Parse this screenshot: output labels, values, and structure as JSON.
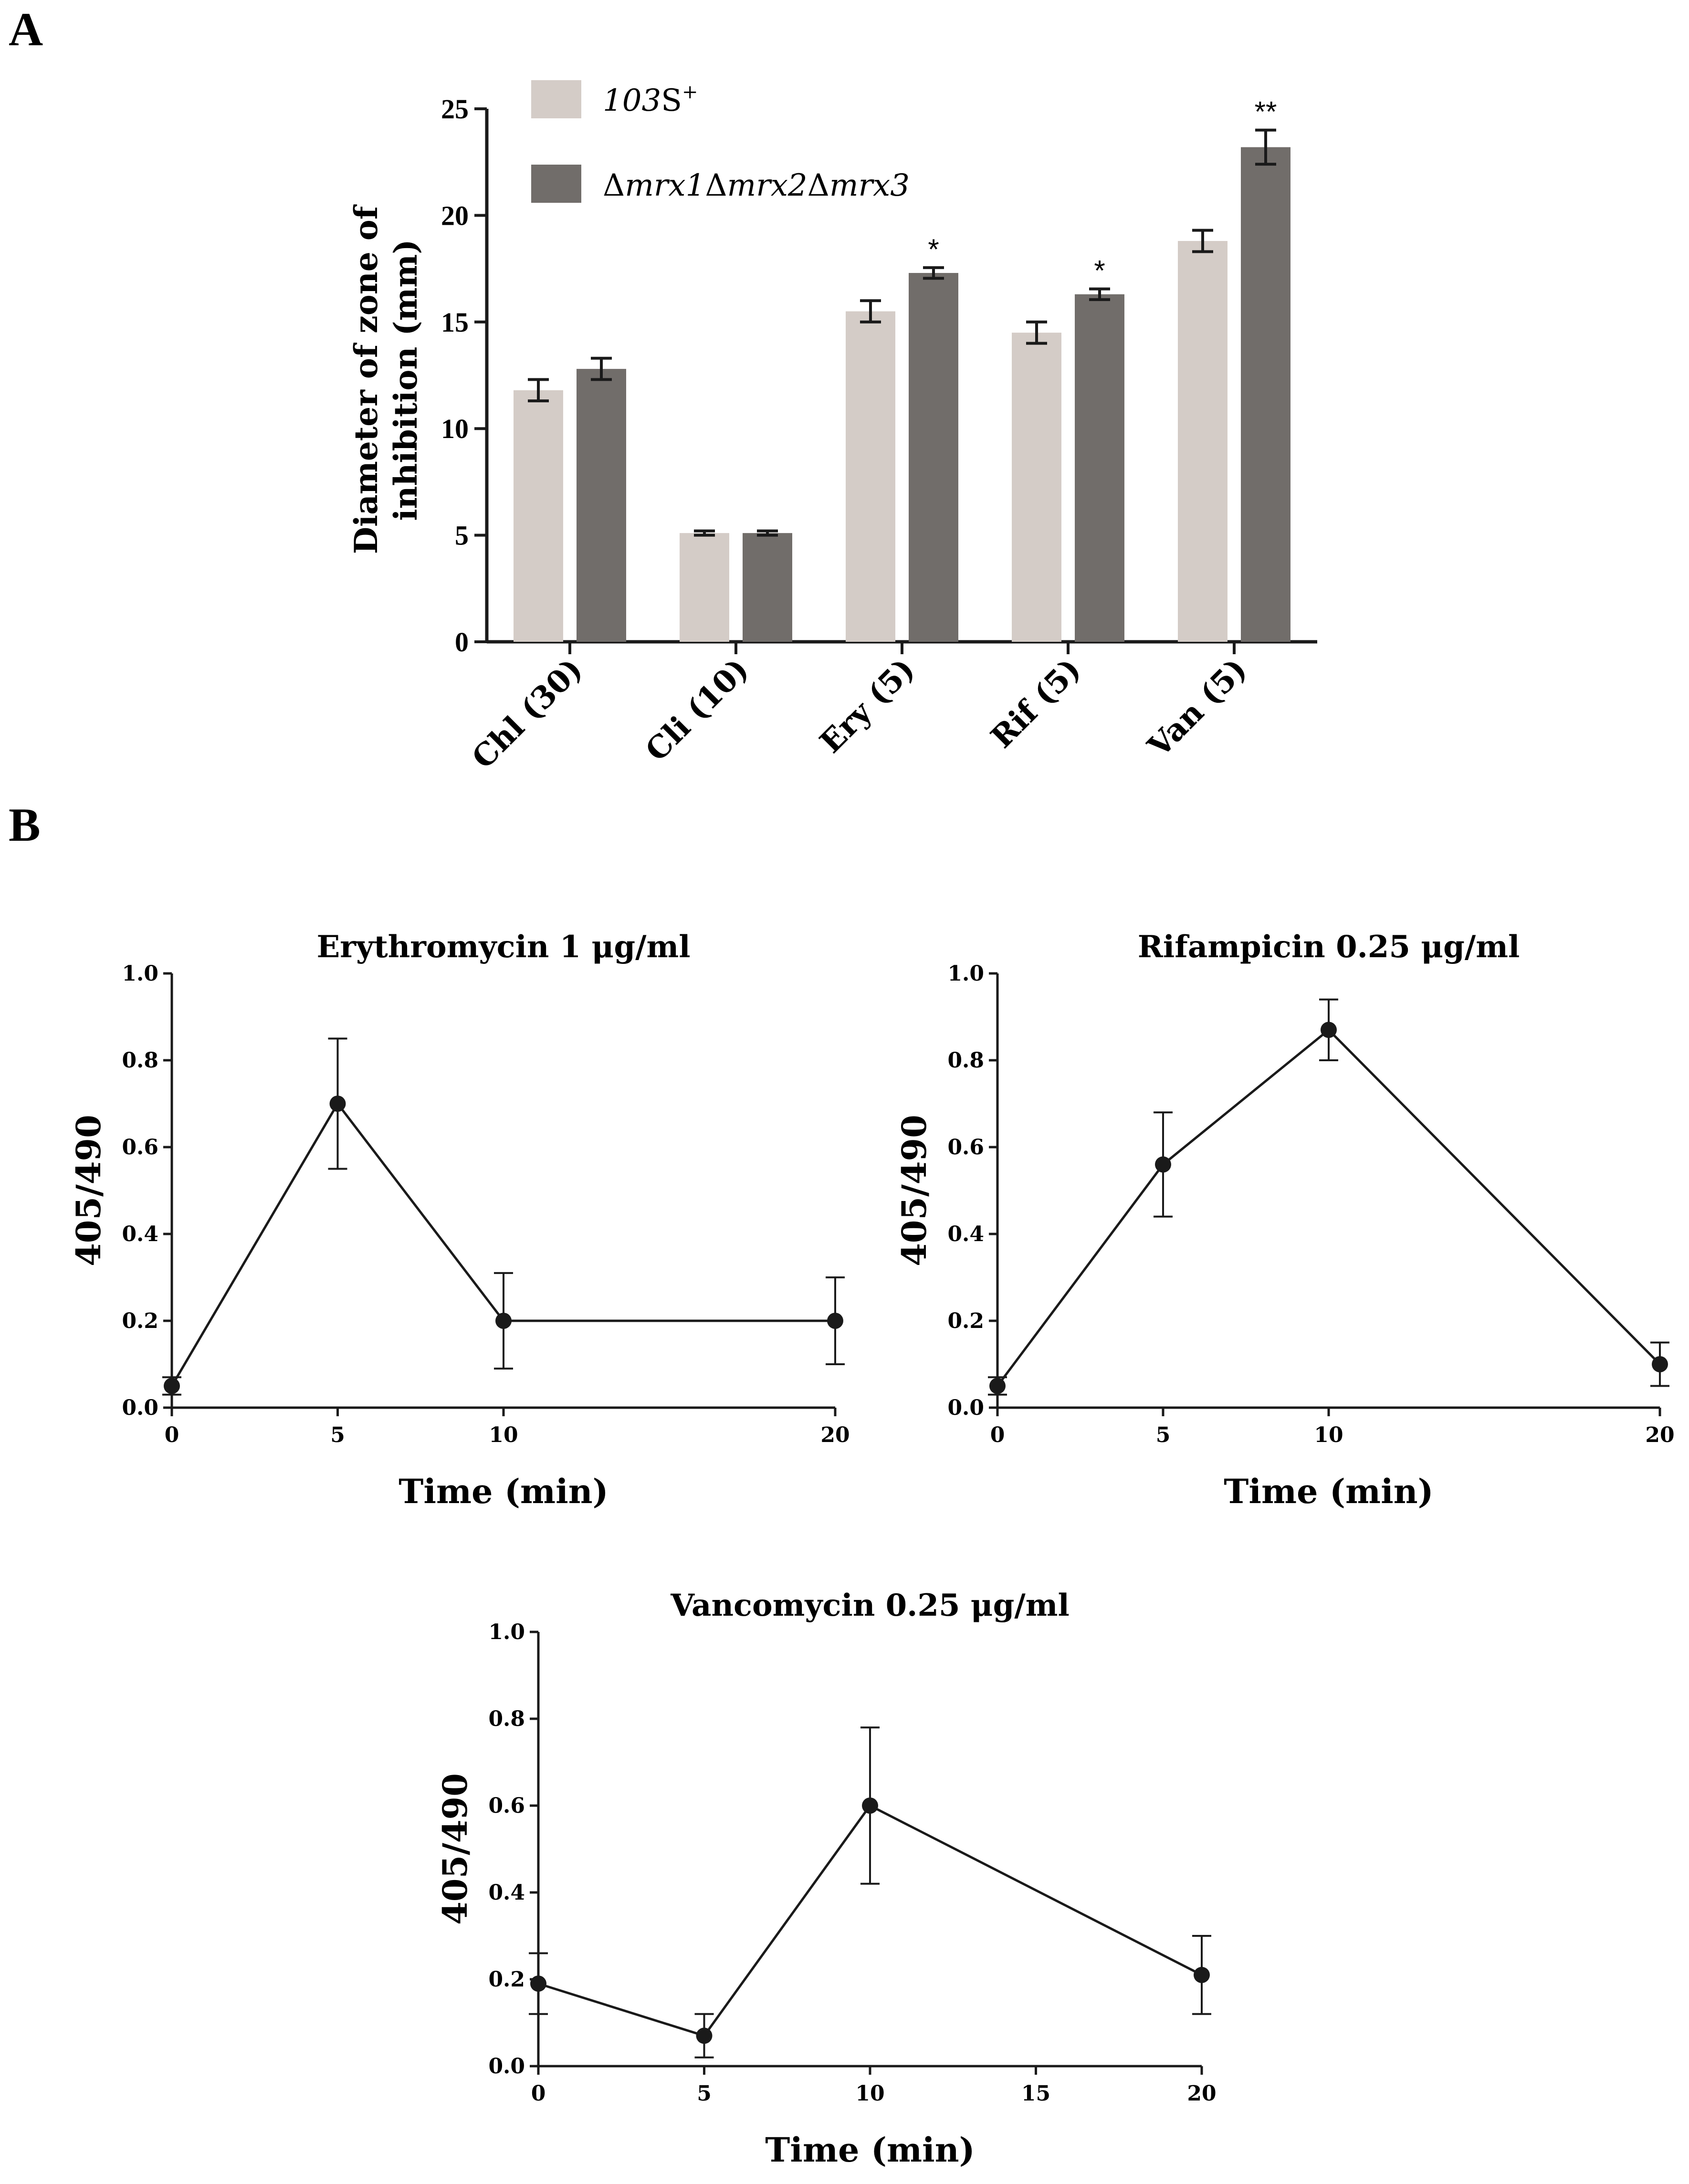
{
  "chart_data": [
    {
      "id": "A",
      "panel_label": "A",
      "type": "bar",
      "title": "",
      "ylabel": "Diameter of zone of inhibition (mm)",
      "ylabel_lines": [
        "Diameter of zone of",
        "inhibition (mm)"
      ],
      "xlabel": "",
      "ylim": [
        0,
        25
      ],
      "yticks": [
        0,
        5,
        10,
        15,
        20,
        25
      ],
      "categories": [
        "Chl (30)",
        "Cli (10)",
        "Ery (5)",
        "Rif (5)",
        "Van (5)"
      ],
      "legend_position": "top-left",
      "series": [
        {
          "name": "103S+",
          "legend_italic": "103",
          "legend_rest": "S",
          "legend_sup": "+",
          "color": "#d4ccc7",
          "values": [
            11.8,
            5.1,
            15.5,
            14.5,
            18.8
          ],
          "errors": [
            0.5,
            0.1,
            0.5,
            0.5,
            0.5
          ]
        },
        {
          "name": "Δmrx1Δmrx2Δmrx3",
          "legend_parts": [
            "Δ",
            "mrx1",
            "Δ",
            "mrx2",
            "Δ",
            "mrx3"
          ],
          "color": "#716d6a",
          "values": [
            12.8,
            5.1,
            17.3,
            16.3,
            23.2
          ],
          "errors": [
            0.5,
            0.1,
            0.25,
            0.25,
            0.8
          ]
        }
      ],
      "annotations": [
        "",
        "",
        "*",
        "*",
        "**"
      ]
    },
    {
      "id": "B1",
      "panel_label": "B",
      "type": "line",
      "title": "Erythromycin 1 μg/ml",
      "xlabel": "Time (min)",
      "ylabel": "405/490",
      "xlim": [
        0,
        20
      ],
      "ylim": [
        0.0,
        1.0
      ],
      "xticks": [
        0,
        5,
        10,
        20
      ],
      "yticks": [
        "0.0",
        "0.2",
        "0.4",
        "0.6",
        "0.8",
        "1.0"
      ],
      "x": [
        0,
        5,
        10,
        20
      ],
      "y": [
        0.05,
        0.7,
        0.2,
        0.2
      ],
      "errors": [
        0.02,
        0.15,
        0.11,
        0.1
      ]
    },
    {
      "id": "B2",
      "type": "line",
      "title": "Rifampicin 0.25 μg/ml",
      "xlabel": "Time (min)",
      "ylabel": "405/490",
      "xlim": [
        0,
        20
      ],
      "ylim": [
        0.0,
        1.0
      ],
      "xticks": [
        0,
        5,
        10,
        20
      ],
      "yticks": [
        "0.0",
        "0.2",
        "0.4",
        "0.6",
        "0.8",
        "1.0"
      ],
      "x": [
        0,
        5,
        10,
        20
      ],
      "y": [
        0.05,
        0.56,
        0.87,
        0.1
      ],
      "errors": [
        0.02,
        0.12,
        0.07,
        0.05
      ]
    },
    {
      "id": "B3",
      "type": "line",
      "title": "Vancomycin 0.25 μg/ml",
      "xlabel": "Time (min)",
      "ylabel": "405/490",
      "xlim": [
        0,
        20
      ],
      "ylim": [
        0.0,
        1.0
      ],
      "xticks": [
        0,
        5,
        10,
        15,
        20
      ],
      "yticks": [
        "0.0",
        "0.2",
        "0.4",
        "0.6",
        "0.8",
        "1.0"
      ],
      "x": [
        0,
        5,
        10,
        20
      ],
      "y": [
        0.19,
        0.07,
        0.6,
        0.21
      ],
      "errors": [
        0.07,
        0.05,
        0.18,
        0.09
      ]
    }
  ]
}
